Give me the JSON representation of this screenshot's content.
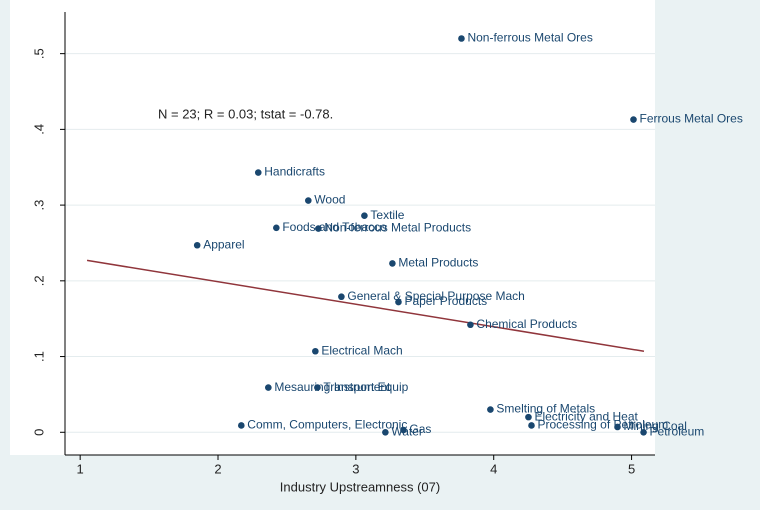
{
  "chart_data": {
    "type": "scatter",
    "x_label": "Industry Upstreamness (07)",
    "annotation": "N = 23; R = 0.03; tstat = -0.78.",
    "xlim": [
      0.89,
      5.17
    ],
    "ylim": [
      -0.03,
      0.555
    ],
    "xticks": [
      1,
      2,
      3,
      4,
      5
    ],
    "yticks": [
      0,
      {
        "value": 0.1,
        "label": ".1"
      },
      {
        "value": 0.2,
        "label": ".2"
      },
      {
        "value": 0.3,
        "label": ".3"
      },
      {
        "value": 0.4,
        "label": ".4"
      },
      {
        "value": 0.5,
        "label": ".5"
      }
    ],
    "grid": true,
    "series": [
      {
        "color": "#1a476f",
        "labels": [
          "Non-ferrous Metal Ores",
          "Ferrous Metal Ores",
          "Handicrafts",
          "Wood",
          "Textile",
          "Foods and Tobacco",
          "Non-ferrous Metal Products",
          "Apparel",
          "Metal Products",
          "General & Special Purpose Mach",
          "Paper Products",
          "Chemical Products",
          "Electrical Mach",
          "Mesauring Instrument",
          "Transport Equip",
          "Smelting of Metals",
          "Electricity and Heat",
          "Processing of Petroleum",
          "Mining Coal",
          "Petroleum",
          "Comm, Computers, Electronic",
          "Water",
          "Gas"
        ],
        "x": [
          3.766,
          5.014,
          2.292,
          2.655,
          3.062,
          2.423,
          2.728,
          1.849,
          3.265,
          2.895,
          3.309,
          3.831,
          2.706,
          2.365,
          2.721,
          3.976,
          4.252,
          4.274,
          4.898,
          5.087,
          2.169,
          3.214,
          3.345
        ],
        "values": [
          0.52,
          0.413,
          0.343,
          0.306,
          0.286,
          0.27,
          0.269,
          0.247,
          0.223,
          0.179,
          0.172,
          0.142,
          0.107,
          0.059,
          0.059,
          0.03,
          0.02,
          0.009,
          0.007,
          0.0,
          0.009,
          0.0,
          0.003
        ]
      }
    ],
    "fit": {
      "color": "#90353b",
      "x": [
        1.05,
        5.09
      ],
      "values": [
        0.227,
        0.107
      ]
    }
  }
}
